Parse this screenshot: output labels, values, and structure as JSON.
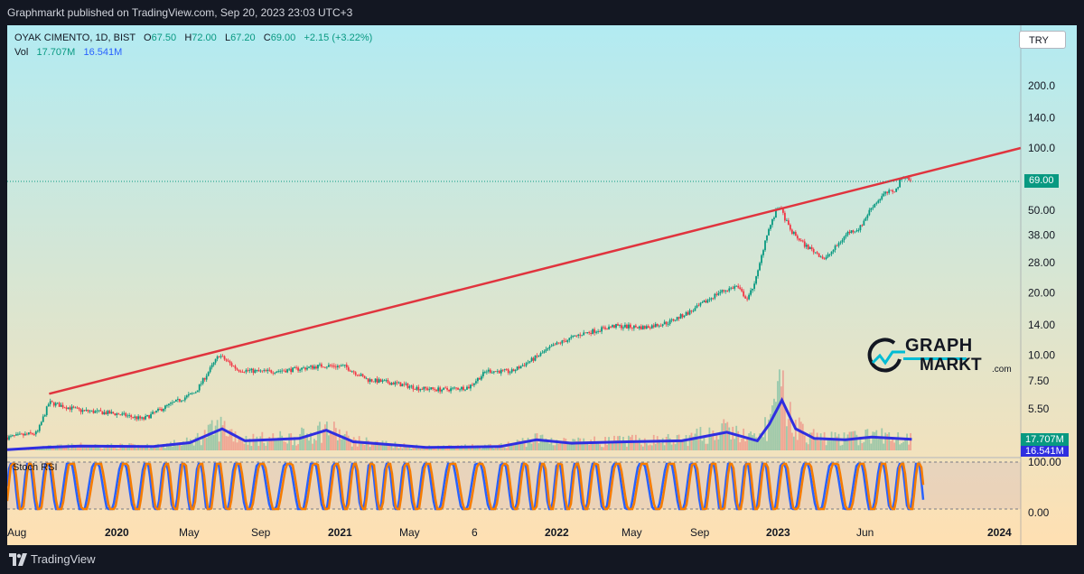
{
  "publish_line": "Graphmarkt published on TradingView.com, Sep 20, 2023 23:03 UTC+3",
  "legend": {
    "symbol": "OYAK CIMENTO, 1D, BIST",
    "open_label": "O",
    "open": "67.50",
    "high_label": "H",
    "high": "72.00",
    "low_label": "L",
    "low": "67.20",
    "close_label": "C",
    "close": "69.00",
    "change": "+2.15 (+3.22%)",
    "vol_label": "Vol",
    "vol_value": "17.707M",
    "vol_ma": "16.541M"
  },
  "currency": "TRY",
  "rsi_title": "Stoch RSI",
  "price_tag": "69.00",
  "vol_tag": "17.707M",
  "vol_ma_tag": "16.541M",
  "logo": {
    "line1": "GRAPH",
    "line2": "MARKT",
    "suffix": ".com"
  },
  "footer": {
    "brand": "TradingView"
  },
  "colors": {
    "up": "#089981",
    "down": "#f23645",
    "trendline": "#e0343e",
    "vol_ma": "#2f2ee0",
    "rsi_k": "#2962ff",
    "rsi_d": "#f57c00",
    "bg_top": "#b2ebf2",
    "bg_bottom": "#ffe0b2"
  },
  "chart_data": {
    "type": "candlestick",
    "scale": "log",
    "x_ticks": [
      "Aug",
      "2020",
      "May",
      "Sep",
      "2021",
      "May",
      "6",
      "2022",
      "May",
      "Sep",
      "2023",
      "Jun",
      "2024"
    ],
    "y_ticks": [
      "200.0",
      "140.0",
      "100.0",
      "50.00",
      "38.00",
      "28.00",
      "20.00",
      "14.00",
      "10.00",
      "7.50",
      "5.50"
    ],
    "y_tick_values": [
      200,
      140,
      100,
      50,
      38,
      28,
      20,
      14,
      10,
      7.5,
      5.5
    ],
    "rsi_ticks": [
      "100.00",
      "0.00"
    ],
    "price_path": [
      [
        "2019-08-01",
        4.0
      ],
      [
        "2019-09-20",
        4.2
      ],
      [
        "2019-10-10",
        5.9
      ],
      [
        "2019-12-01",
        5.4
      ],
      [
        "2020-02-01",
        5.2
      ],
      [
        "2020-03-15",
        4.9
      ],
      [
        "2020-04-20",
        5.6
      ],
      [
        "2020-06-10",
        6.6
      ],
      [
        "2020-07-20",
        10.0
      ],
      [
        "2020-08-20",
        8.5
      ],
      [
        "2020-10-01",
        8.3
      ],
      [
        "2020-11-20",
        8.5
      ],
      [
        "2021-01-10",
        8.9
      ],
      [
        "2021-02-15",
        8.8
      ],
      [
        "2021-03-25",
        7.6
      ],
      [
        "2021-05-10",
        7.3
      ],
      [
        "2021-06-20",
        6.9
      ],
      [
        "2021-08-01",
        6.8
      ],
      [
        "2021-09-10",
        7.0
      ],
      [
        "2021-10-10",
        8.4
      ],
      [
        "2021-11-20",
        8.3
      ],
      [
        "2021-12-25",
        9.5
      ],
      [
        "2022-02-01",
        11.2
      ],
      [
        "2022-03-15",
        12.6
      ],
      [
        "2022-05-10",
        13.8
      ],
      [
        "2022-07-01",
        13.6
      ],
      [
        "2022-08-10",
        14.4
      ],
      [
        "2022-09-20",
        16.5
      ],
      [
        "2022-11-01",
        20.0
      ],
      [
        "2022-12-01",
        21.5
      ],
      [
        "2022-12-20",
        18.5
      ],
      [
        "2023-01-05",
        24.5
      ],
      [
        "2023-01-20",
        38.0
      ],
      [
        "2023-02-10",
        53.0
      ],
      [
        "2023-03-01",
        40.0
      ],
      [
        "2023-03-25",
        34.0
      ],
      [
        "2023-04-15",
        31.0
      ],
      [
        "2023-04-28",
        29.0
      ],
      [
        "2023-05-15",
        33.0
      ],
      [
        "2023-06-05",
        39.0
      ],
      [
        "2023-06-25",
        41.0
      ],
      [
        "2023-07-15",
        52.0
      ],
      [
        "2023-08-05",
        60.0
      ],
      [
        "2023-08-25",
        63.0
      ],
      [
        "2023-09-05",
        74.0
      ],
      [
        "2023-09-20",
        69.0
      ]
    ],
    "trendline": [
      [
        "2019-10-10",
        6.5
      ],
      [
        "2024-03-20",
        100.0
      ]
    ],
    "vol_ma_path": [
      [
        "2019-08-01",
        0.15
      ],
      [
        "2019-10-01",
        0.6
      ],
      [
        "2019-12-01",
        0.9
      ],
      [
        "2020-04-01",
        0.8
      ],
      [
        "2020-06-01",
        1.6
      ],
      [
        "2020-07-25",
        4.5
      ],
      [
        "2020-09-01",
        2.0
      ],
      [
        "2020-12-01",
        2.5
      ],
      [
        "2021-01-15",
        4.2
      ],
      [
        "2021-03-01",
        1.8
      ],
      [
        "2021-07-01",
        0.6
      ],
      [
        "2021-11-01",
        0.8
      ],
      [
        "2022-01-01",
        2.2
      ],
      [
        "2022-03-01",
        1.5
      ],
      [
        "2022-06-01",
        1.8
      ],
      [
        "2022-09-01",
        2.0
      ],
      [
        "2022-11-15",
        3.8
      ],
      [
        "2023-01-05",
        2.0
      ],
      [
        "2023-01-25",
        5.5
      ],
      [
        "2023-02-15",
        10.5
      ],
      [
        "2023-03-10",
        4.5
      ],
      [
        "2023-04-10",
        2.5
      ],
      [
        "2023-06-01",
        2.2
      ],
      [
        "2023-07-15",
        2.8
      ],
      [
        "2023-09-20",
        2.3
      ]
    ]
  }
}
